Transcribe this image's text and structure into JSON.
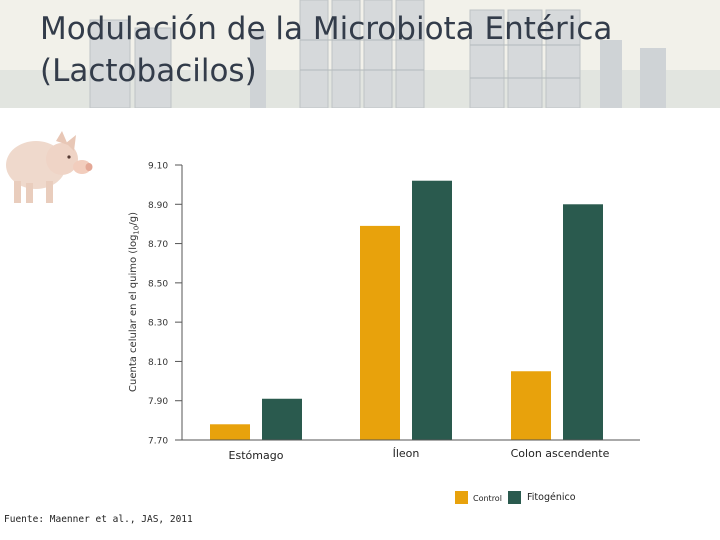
{
  "slide": {
    "title_line1": "Modulación de la Microbiota Entérica",
    "title_line2": "(Lactobacilos)",
    "source": "Fuente: Maenner et al., JAS, 2011",
    "header_image": "grain-silos-photo",
    "pig_image": "pig-photo"
  },
  "chart_data": {
    "type": "bar",
    "title": "",
    "xlabel": "",
    "ylabel": "Cuenta celular en el quimo (log10/g)",
    "ylabel_main": "Cuenta celular en el quimo (log",
    "ylabel_sub": "10",
    "ylabel_end": "/g)",
    "ylim": [
      7.7,
      9.1
    ],
    "yticks": [
      "9.10",
      "8.90",
      "8.70",
      "8.50",
      "8.30",
      "8.10",
      "7.90",
      "7.70"
    ],
    "categories": [
      "Estómago",
      "Íleon",
      "Colon ascendente"
    ],
    "series": [
      {
        "name": "Control",
        "color": "#E8A20C",
        "values": [
          7.78,
          8.79,
          8.05
        ]
      },
      {
        "name": "Fitogénico",
        "color": "#2A5A4E",
        "values": [
          7.91,
          9.02,
          8.9
        ]
      }
    ],
    "legend_position": "bottom-right",
    "grid": false
  }
}
